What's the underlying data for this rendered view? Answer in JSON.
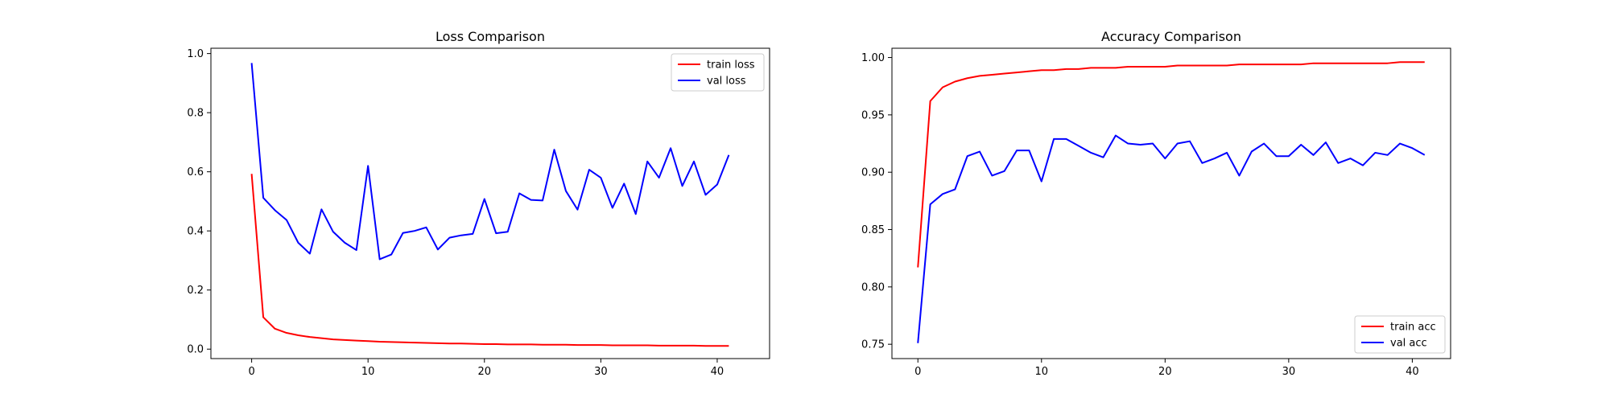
{
  "chart_data": [
    {
      "type": "line",
      "title": "Loss Comparison",
      "xlabel": "",
      "ylabel": "",
      "xlim": [
        -3.5,
        44.5
      ],
      "ylim": [
        -0.032,
        1.018
      ],
      "xticks": [
        0,
        10,
        20,
        30,
        40
      ],
      "yticks": [
        0.0,
        0.2,
        0.4,
        0.6,
        0.8,
        1.0
      ],
      "ytick_labels": [
        "0.0",
        "0.2",
        "0.4",
        "0.6",
        "0.8",
        "1.0"
      ],
      "legend_position": "top-right",
      "grid": false,
      "x": [
        0,
        1,
        2,
        3,
        4,
        5,
        6,
        7,
        8,
        9,
        10,
        11,
        12,
        13,
        14,
        15,
        16,
        17,
        18,
        19,
        20,
        21,
        22,
        23,
        24,
        25,
        26,
        27,
        28,
        29,
        30,
        31,
        32,
        33,
        34,
        35,
        36,
        37,
        38,
        39,
        40,
        41
      ],
      "series": [
        {
          "name": "train loss",
          "color": "#ff0000",
          "values": [
            0.593,
            0.108,
            0.069,
            0.055,
            0.047,
            0.041,
            0.037,
            0.033,
            0.031,
            0.029,
            0.027,
            0.025,
            0.024,
            0.023,
            0.022,
            0.021,
            0.02,
            0.019,
            0.019,
            0.018,
            0.017,
            0.017,
            0.016,
            0.016,
            0.016,
            0.015,
            0.015,
            0.015,
            0.014,
            0.014,
            0.014,
            0.013,
            0.013,
            0.013,
            0.013,
            0.012,
            0.012,
            0.012,
            0.012,
            0.011,
            0.011,
            0.011
          ]
        },
        {
          "name": "val loss",
          "color": "#0000ff",
          "values": [
            0.968,
            0.512,
            0.47,
            0.437,
            0.36,
            0.323,
            0.473,
            0.397,
            0.36,
            0.335,
            0.62,
            0.304,
            0.32,
            0.393,
            0.4,
            0.412,
            0.337,
            0.377,
            0.385,
            0.39,
            0.508,
            0.392,
            0.397,
            0.527,
            0.505,
            0.503,
            0.675,
            0.535,
            0.472,
            0.607,
            0.58,
            0.478,
            0.56,
            0.457,
            0.635,
            0.58,
            0.68,
            0.552,
            0.635,
            0.522,
            0.557,
            0.657
          ]
        }
      ]
    },
    {
      "type": "line",
      "title": "Accuracy Comparison",
      "xlabel": "",
      "ylabel": "",
      "xlim": [
        -2.1,
        43.1
      ],
      "ylim": [
        0.7375,
        1.0081
      ],
      "xticks": [
        0,
        10,
        20,
        30,
        40
      ],
      "yticks": [
        0.75,
        0.8,
        0.85,
        0.9,
        0.95,
        1.0
      ],
      "ytick_labels": [
        "0.75",
        "0.80",
        "0.85",
        "0.90",
        "0.95",
        "1.00"
      ],
      "legend_position": "bottom-right",
      "grid": false,
      "x": [
        0,
        1,
        2,
        3,
        4,
        5,
        6,
        7,
        8,
        9,
        10,
        11,
        12,
        13,
        14,
        15,
        16,
        17,
        18,
        19,
        20,
        21,
        22,
        23,
        24,
        25,
        26,
        27,
        28,
        29,
        30,
        31,
        32,
        33,
        34,
        35,
        36,
        37,
        38,
        39,
        40,
        41
      ],
      "series": [
        {
          "name": "train acc",
          "color": "#ff0000",
          "values": [
            0.817,
            0.962,
            0.974,
            0.979,
            0.982,
            0.984,
            0.985,
            0.986,
            0.987,
            0.988,
            0.989,
            0.989,
            0.99,
            0.99,
            0.991,
            0.991,
            0.991,
            0.992,
            0.992,
            0.992,
            0.992,
            0.993,
            0.993,
            0.993,
            0.993,
            0.993,
            0.994,
            0.994,
            0.994,
            0.994,
            0.994,
            0.994,
            0.995,
            0.995,
            0.995,
            0.995,
            0.995,
            0.995,
            0.995,
            0.996,
            0.996,
            0.996
          ]
        },
        {
          "name": "val acc",
          "color": "#0000ff",
          "values": [
            0.751,
            0.872,
            0.881,
            0.885,
            0.914,
            0.918,
            0.897,
            0.901,
            0.919,
            0.919,
            0.892,
            0.929,
            0.929,
            0.923,
            0.917,
            0.913,
            0.932,
            0.925,
            0.924,
            0.925,
            0.912,
            0.925,
            0.927,
            0.908,
            0.912,
            0.917,
            0.897,
            0.918,
            0.925,
            0.914,
            0.914,
            0.924,
            0.915,
            0.926,
            0.908,
            0.912,
            0.906,
            0.917,
            0.915,
            0.925,
            0.921,
            0.915
          ]
        }
      ]
    }
  ]
}
